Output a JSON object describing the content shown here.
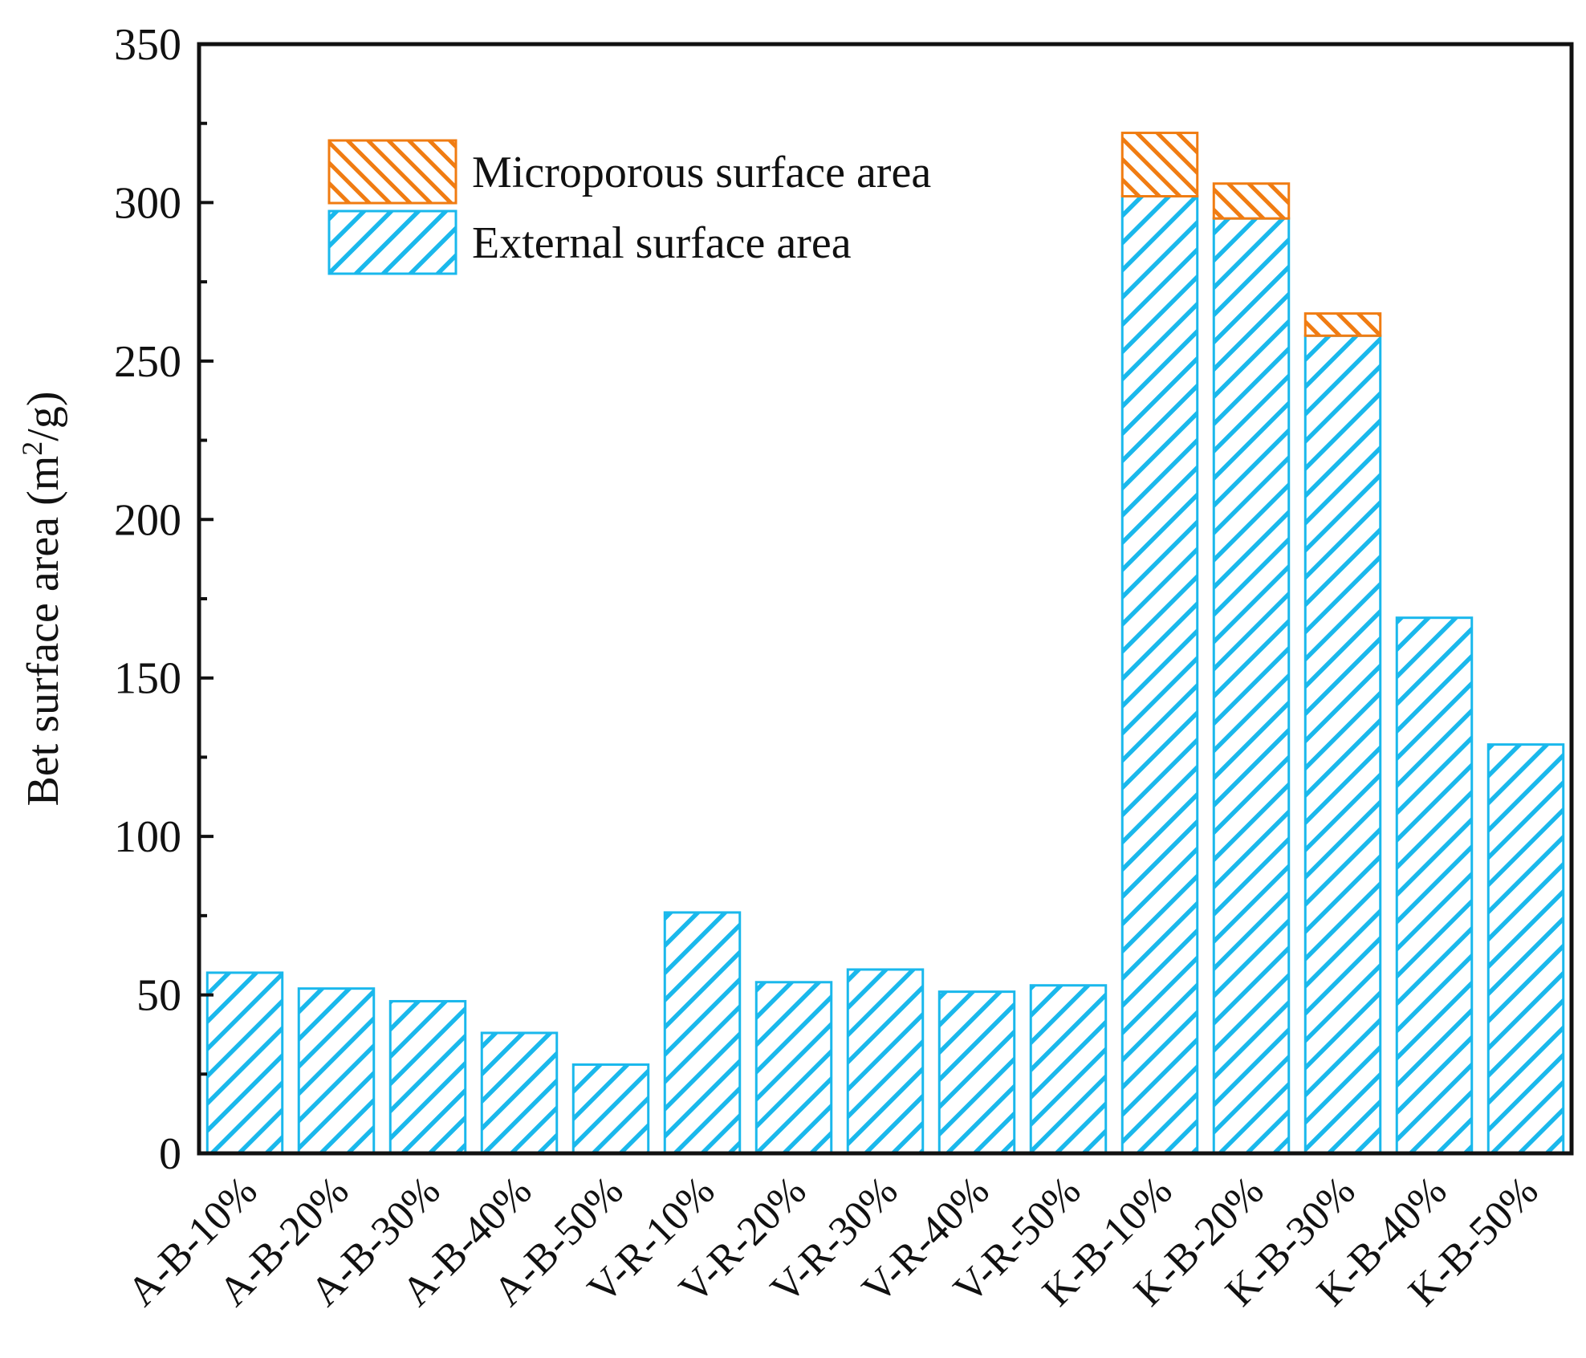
{
  "chart_data": {
    "type": "bar",
    "stacked": true,
    "title": "",
    "xlabel": "",
    "ylabel": "Bet surface area (m²/g)",
    "ylabel_parts": {
      "pre": "Bet surface area (m",
      "sup": "2",
      "post": "/g)"
    },
    "ylim": [
      0,
      350
    ],
    "yticks": [
      0,
      50,
      100,
      150,
      200,
      250,
      300,
      350
    ],
    "grid": false,
    "legend_position": "top-left",
    "categories": [
      "A-B-10%",
      "A-B-20%",
      "A-B-30%",
      "A-B-40%",
      "A-B-50%",
      "V-R-10%",
      "V-R-20%",
      "V-R-30%",
      "V-R-40%",
      "V-R-50%",
      "K-B-10%",
      "K-B-20%",
      "K-B-30%",
      "K-B-40%",
      "K-B-50%"
    ],
    "series": [
      {
        "name": "External surface area",
        "color": "#1ab8ec",
        "pattern": "diagonal-hatch",
        "values": [
          57,
          52,
          48,
          38,
          28,
          76,
          54,
          58,
          51,
          53,
          302,
          295,
          258,
          169,
          129
        ]
      },
      {
        "name": "Microporous surface area",
        "color": "#f07c12",
        "pattern": "diagonal-hatch",
        "values": [
          0,
          0,
          0,
          0,
          0,
          0,
          0,
          0,
          0,
          0,
          20,
          11,
          7,
          0,
          0
        ]
      }
    ]
  }
}
